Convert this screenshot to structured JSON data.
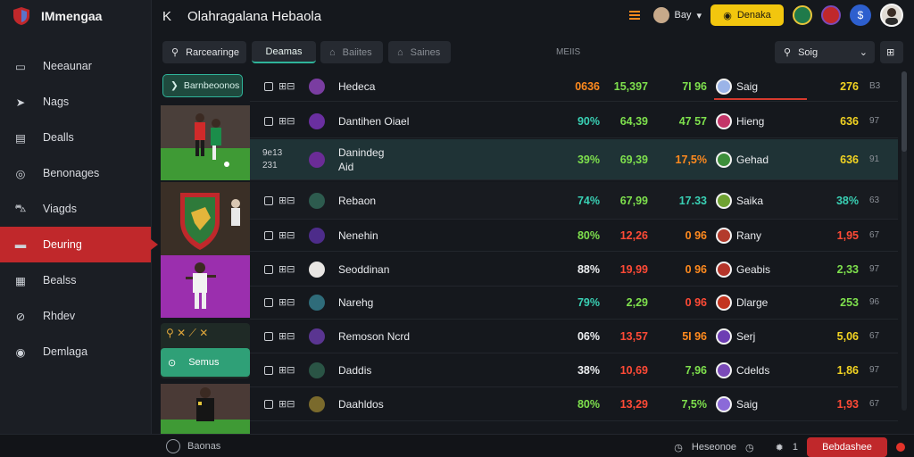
{
  "app": {
    "name": "IMmengaa",
    "logo_icon": "shield-logo-icon"
  },
  "header": {
    "back_icon": "back-icon",
    "title": "Olahragalana Hebaola",
    "user": "Bay",
    "yellow_button": "Denaka",
    "blue_button_icon": "dollar-icon"
  },
  "sidebar": {
    "items": [
      {
        "label": "Neeaunar",
        "icon": "monitor-icon"
      },
      {
        "label": "Nags",
        "icon": "cursor-icon"
      },
      {
        "label": "Dealls",
        "icon": "clipboard-icon"
      },
      {
        "label": "Benonages",
        "icon": "gamepad-icon"
      },
      {
        "label": "Viagds",
        "icon": "car-icon"
      },
      {
        "label": "Deuring",
        "icon": "folder-icon",
        "active": true
      },
      {
        "label": "Bealss",
        "icon": "building-icon"
      },
      {
        "label": "Rhdev",
        "icon": "compass-icon"
      },
      {
        "label": "Demlaga",
        "icon": "target-icon"
      }
    ]
  },
  "filters": {
    "search": "Rarcearinge",
    "tab_active": "Deamas",
    "tab2": "Baiites",
    "tab3": "Saines",
    "column_head": "MEIIS",
    "dropdown": "Soig"
  },
  "cards": {
    "top_chip": "Barnbeoonos",
    "bottom_chip": "Semus"
  },
  "rows": [
    {
      "name": "Hedeca",
      "pct": "0636",
      "pct_c": "orange",
      "odds": "15,397",
      "odds_c": "green",
      "delta": "7I 96",
      "delta_c": "green",
      "market": "Saig",
      "val": "276",
      "val_c": "yellow",
      "small": "B3",
      "team_color": "#7a3da1",
      "mkt_color": "#9bb4e8",
      "underline": true
    },
    {
      "name": "Dantihen Oiael",
      "pct": "90%",
      "pct_c": "teal",
      "odds": "64,39",
      "odds_c": "green",
      "delta": "47 57",
      "delta_c": "green",
      "market": "Hieng",
      "val": "636",
      "val_c": "yellow",
      "small": "97",
      "team_color": "#6a2fa0",
      "mkt_color": "#c33568"
    },
    {
      "name": "Danindeg",
      "name2": "Aid",
      "pct": "39%",
      "pct_c": "green",
      "odds": "69,39",
      "odds_c": "green",
      "delta": "17,5%",
      "delta_c": "orange",
      "market": "Gehad",
      "val": "636",
      "val_c": "yellow",
      "small": "91",
      "team_color": "#6b2c97",
      "mkt_color": "#3d8f3b",
      "highlight": true,
      "stat_a": "9e13",
      "stat_b": "231"
    },
    {
      "name": "Rebaon",
      "pct": "74%",
      "pct_c": "teal",
      "odds": "67,99",
      "odds_c": "green",
      "delta": "17.33",
      "delta_c": "teal",
      "market": "Saika",
      "val": "38%",
      "val_c": "teal",
      "small": "63",
      "team_color": "#2d5b4e",
      "mkt_color": "#6fa232",
      "dark": true
    },
    {
      "name": "Nenehin",
      "pct": "80%",
      "pct_c": "green",
      "odds": "12,26",
      "odds_c": "red",
      "delta": "0 96",
      "delta_c": "orange",
      "market": "Rany",
      "val": "1,95",
      "val_c": "red",
      "small": "67",
      "team_color": "#4d2c8a",
      "mkt_color": "#b33b2c"
    },
    {
      "name": "Seoddinan",
      "pct": "88%",
      "pct_c": "white",
      "odds": "19,99",
      "odds_c": "red",
      "delta": "0 96",
      "delta_c": "orange",
      "market": "Geabis",
      "val": "2,33",
      "val_c": "green",
      "small": "97",
      "team_color": "#e8e6e3",
      "mkt_color": "#b5352a"
    },
    {
      "name": "Narehg",
      "pct": "79%",
      "pct_c": "teal",
      "odds": "2,29",
      "odds_c": "green",
      "delta": "0 96",
      "delta_c": "red",
      "market": "Dlarge",
      "val": "253",
      "val_c": "green",
      "small": "96",
      "team_color": "#2f6c7a",
      "mkt_color": "#c3341f"
    },
    {
      "name": "Remoson Ncrd",
      "pct": "06%",
      "pct_c": "white",
      "odds": "13,57",
      "odds_c": "red",
      "delta": "5I 96",
      "delta_c": "orange",
      "market": "Serj",
      "val": "5,06",
      "val_c": "yellow",
      "small": "67",
      "team_color": "#5a3591",
      "mkt_color": "#6d3db3"
    },
    {
      "name": "Daddis",
      "pct": "38%",
      "pct_c": "white",
      "odds": "10,69",
      "odds_c": "red",
      "delta": "7,96",
      "delta_c": "green",
      "market": "Cdelds",
      "val": "1,86",
      "val_c": "yellow",
      "small": "97",
      "team_color": "#2a5445",
      "mkt_color": "#7a4ab8"
    },
    {
      "name": "Daahldos",
      "pct": "80%",
      "pct_c": "green",
      "odds": "13,29",
      "odds_c": "red",
      "delta": "7,5%",
      "delta_c": "green",
      "market": "Saig",
      "val": "1,93",
      "val_c": "red",
      "small": "67",
      "team_color": "#7a6a2c",
      "mkt_color": "#8b6ad8"
    }
  ],
  "footer": {
    "left": "Baonas",
    "right_label": "Heseonoe",
    "right_count": "1",
    "red_button": "Bebdashee"
  }
}
